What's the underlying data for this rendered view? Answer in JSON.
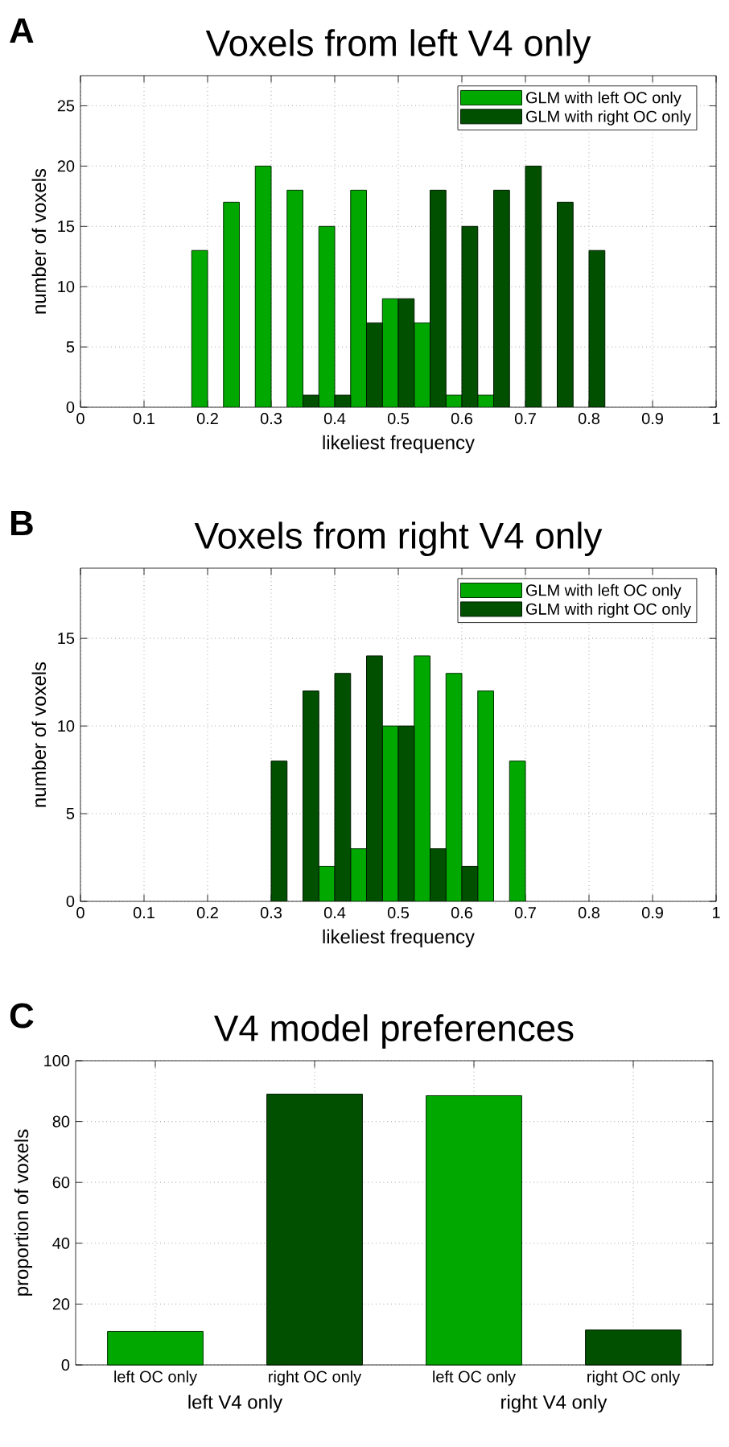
{
  "chart_data": [
    {
      "type": "bar",
      "title": "Voxels from left V4 only",
      "xlabel": "likeliest frequency",
      "ylabel": "number of voxels",
      "annotations": [
        "A"
      ],
      "x": [
        0.2,
        0.25,
        0.3,
        0.35,
        0.4,
        0.45,
        0.5,
        0.55,
        0.6,
        0.65,
        0.7,
        0.75,
        0.8
      ],
      "series": [
        {
          "name": "GLM with left OC only",
          "color": "#00a800",
          "values": [
            13,
            17,
            20,
            18,
            15,
            18,
            9,
            7,
            1,
            1,
            null,
            null,
            null
          ]
        },
        {
          "name": "GLM with right OC only",
          "color": "#005000",
          "values": [
            null,
            null,
            null,
            1,
            1,
            7,
            9,
            18,
            15,
            18,
            20,
            17,
            13
          ]
        }
      ],
      "xlim": [
        0,
        1
      ],
      "xticks": [
        0,
        0.1,
        0.2,
        0.3,
        0.4,
        0.5,
        0.6,
        0.7,
        0.8,
        0.9,
        1
      ],
      "ylim": [
        0,
        27.5
      ],
      "yticks": [
        0,
        5,
        10,
        15,
        20,
        25
      ],
      "grid": true,
      "legend": "top right"
    },
    {
      "type": "bar",
      "title": "Voxels from right V4 only",
      "xlabel": "likeliest frequency",
      "ylabel": "number of voxels",
      "annotations": [
        "B"
      ],
      "x": [
        0.3,
        0.35,
        0.4,
        0.45,
        0.5,
        0.55,
        0.6,
        0.65,
        0.7
      ],
      "series": [
        {
          "name": "GLM with left OC only",
          "color": "#00a800",
          "values": [
            null,
            null,
            2,
            3,
            10,
            14,
            13,
            12,
            8
          ]
        },
        {
          "name": "GLM with right OC only",
          "color": "#005000",
          "values": [
            8,
            12,
            13,
            14,
            10,
            3,
            2,
            null,
            null
          ]
        }
      ],
      "xlim": [
        0,
        1
      ],
      "xticks": [
        0,
        0.1,
        0.2,
        0.3,
        0.4,
        0.5,
        0.6,
        0.7,
        0.8,
        0.9,
        1
      ],
      "ylim": [
        0,
        19
      ],
      "yticks": [
        0,
        5,
        10,
        15
      ],
      "grid": true,
      "legend": "top right"
    },
    {
      "type": "bar",
      "title": "V4 model preferences",
      "ylabel": "proportion of voxels",
      "annotations": [
        "C",
        "left V4 only",
        "right V4 only"
      ],
      "categories": [
        "left OC only",
        "right OC only",
        "left OC only",
        "right OC only"
      ],
      "values": [
        11,
        89,
        88.5,
        11.5
      ],
      "colors": [
        "#00a800",
        "#005000",
        "#00a800",
        "#005000"
      ],
      "ylim": [
        0,
        100
      ],
      "yticks": [
        0,
        20,
        40,
        60,
        80,
        100
      ],
      "grid": true
    }
  ]
}
